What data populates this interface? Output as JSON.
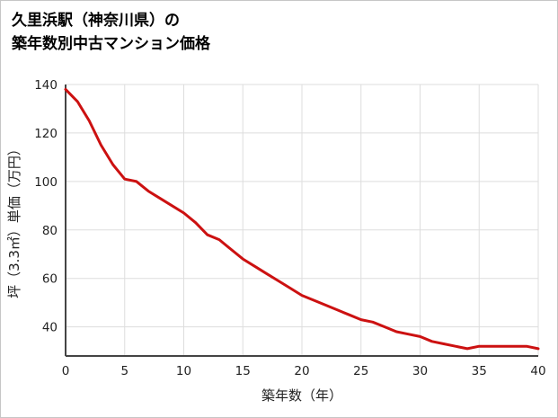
{
  "header": {
    "title_line1": "久里浜駅（神奈川県）の",
    "title_line2": "築年数別中古マンション価格"
  },
  "chart_data": {
    "type": "line",
    "title": "久里浜駅（神奈川県）の築年数別中古マンション価格",
    "xlabel": "築年数（年）",
    "ylabel": "坪（3.3㎡）単価（万円）",
    "x": [
      0,
      1,
      2,
      3,
      4,
      5,
      6,
      7,
      8,
      9,
      10,
      11,
      12,
      13,
      14,
      15,
      16,
      17,
      18,
      19,
      20,
      21,
      22,
      23,
      24,
      25,
      26,
      27,
      28,
      29,
      30,
      31,
      32,
      33,
      34,
      35,
      36,
      37,
      38,
      39,
      40
    ],
    "values": [
      138,
      133,
      125,
      115,
      107,
      101,
      100,
      96,
      93,
      90,
      87,
      83,
      78,
      76,
      72,
      68,
      65,
      62,
      59,
      56,
      53,
      51,
      49,
      47,
      45,
      43,
      42,
      40,
      38,
      37,
      36,
      34,
      33,
      32,
      31,
      32,
      32,
      32,
      32,
      32,
      31
    ],
    "xlim": [
      0,
      40
    ],
    "ylim": [
      28,
      140
    ],
    "xticks": [
      0,
      5,
      10,
      15,
      20,
      25,
      30,
      35,
      40
    ],
    "yticks": [
      40,
      60,
      80,
      100,
      120,
      140
    ],
    "grid": true,
    "legend": false,
    "colors": {
      "line": "#cc1111",
      "axis": "#444444",
      "grid": "#dddddd",
      "text": "#222222"
    }
  }
}
